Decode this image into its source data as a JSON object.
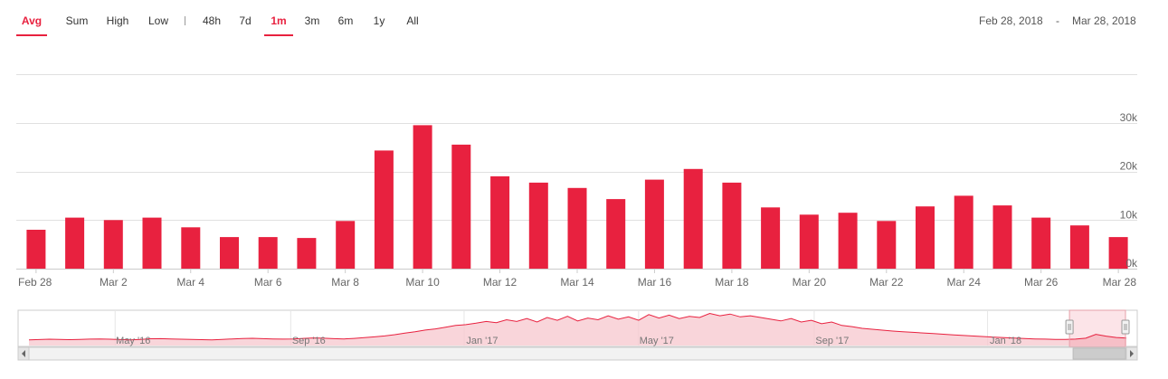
{
  "toolbar": {
    "buttons": [
      {
        "label": "Avg",
        "active": true
      },
      {
        "label": "Sum",
        "active": false
      },
      {
        "label": "High",
        "active": false
      },
      {
        "label": "Low",
        "active": false
      }
    ],
    "separator": "|",
    "ranges": [
      {
        "label": "48h",
        "active": false
      },
      {
        "label": "7d",
        "active": false
      },
      {
        "label": "1m",
        "active": true
      },
      {
        "label": "3m",
        "active": false
      },
      {
        "label": "6m",
        "active": false
      },
      {
        "label": "1y",
        "active": false
      },
      {
        "label": "All",
        "active": false
      }
    ],
    "date_from": "Feb 28, 2018",
    "date_sep": "-",
    "date_to": "Mar 28, 2018"
  },
  "colors": {
    "bar": "#e8213f",
    "accent": "#e8213f",
    "grid": "#e0e0e0",
    "nav_fill": "#f7c7cd",
    "nav_line": "#e8213f"
  },
  "chart_data": {
    "type": "bar",
    "categories": [
      "Feb 28",
      "Mar 1",
      "Mar 2",
      "Mar 3",
      "Mar 4",
      "Mar 5",
      "Mar 6",
      "Mar 7",
      "Mar 8",
      "Mar 9",
      "Mar 10",
      "Mar 11",
      "Mar 12",
      "Mar 13",
      "Mar 14",
      "Mar 15",
      "Mar 16",
      "Mar 17",
      "Mar 18",
      "Mar 19",
      "Mar 20",
      "Mar 21",
      "Mar 22",
      "Mar 23",
      "Mar 24",
      "Mar 25",
      "Mar 26",
      "Mar 27",
      "Mar 28"
    ],
    "x_tick_labels": [
      "Feb 28",
      "Mar 2",
      "Mar 4",
      "Mar 6",
      "Mar 8",
      "Mar 10",
      "Mar 12",
      "Mar 14",
      "Mar 16",
      "Mar 18",
      "Mar 20",
      "Mar 22",
      "Mar 24",
      "Mar 26",
      "Mar 28"
    ],
    "values": [
      8000,
      10500,
      10000,
      10500,
      8500,
      6500,
      6500,
      6300,
      9800,
      24300,
      29500,
      25500,
      19000,
      17700,
      16600,
      14300,
      18300,
      20500,
      17700,
      12600,
      11100,
      11500,
      9800,
      12800,
      15000,
      13000,
      10500,
      8900,
      6500
    ],
    "ylim": [
      0,
      40000
    ],
    "y_ticks": [
      0,
      10000,
      20000,
      30000
    ],
    "y_tick_labels": [
      "0k",
      "10k",
      "20k",
      "30k"
    ],
    "grid": true,
    "navigator": {
      "labels": [
        "May '16",
        "Sep '16",
        "Jan '17",
        "May '17",
        "Sep '17",
        "Jan '18"
      ],
      "series": [
        5000,
        5200,
        5500,
        5400,
        5100,
        5300,
        5600,
        5800,
        5500,
        5200,
        5000,
        5400,
        5900,
        6000,
        5700,
        5500,
        5300,
        5100,
        5000,
        5400,
        5800,
        6100,
        6300,
        6000,
        5800,
        5600,
        5700,
        6200,
        6600,
        6400,
        6000,
        5800,
        6200,
        6900,
        7600,
        8400,
        9500,
        10800,
        12000,
        13500,
        14500,
        16000,
        17500,
        18200,
        19500,
        21000,
        20000,
        22500,
        21000,
        23500,
        20500,
        24500,
        22000,
        25500,
        21500,
        24000,
        22500,
        26000,
        23000,
        25000,
        22000,
        27000,
        24000,
        26500,
        23500,
        25500,
        24500,
        28000,
        26000,
        27500,
        25000,
        26000,
        24500,
        23000,
        21500,
        23500,
        20500,
        22000,
        19000,
        20500,
        17500,
        16500,
        15000,
        14200,
        13400,
        12600,
        12000,
        11500,
        11000,
        10500,
        9900,
        9300,
        8800,
        8300,
        7800,
        7300,
        6900,
        6500,
        6100,
        5800,
        5600,
        5400,
        5300,
        5600,
        6400,
        9800,
        8200,
        7000,
        6500
      ],
      "selection": [
        0.954,
        1.0
      ]
    }
  }
}
